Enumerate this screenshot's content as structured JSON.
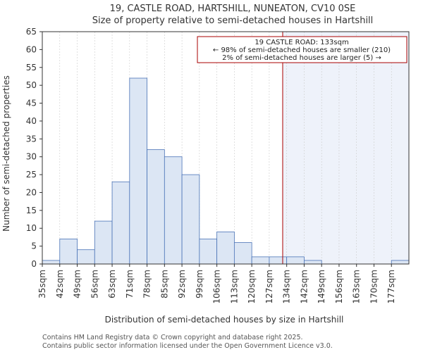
{
  "chart_data": {
    "type": "bar",
    "title_line1": "19, CASTLE ROAD, HARTSHILL, NUNEATON, CV10 0SE",
    "title_line2": "Size of property relative to semi-detached houses in Hartshill",
    "xlabel": "Distribution of semi-detached houses by size in Hartshill",
    "ylabel": "Number of semi-detached properties",
    "categories": [
      "35sqm",
      "42sqm",
      "49sqm",
      "56sqm",
      "63sqm",
      "71sqm",
      "78sqm",
      "85sqm",
      "92sqm",
      "99sqm",
      "106sqm",
      "113sqm",
      "120sqm",
      "127sqm",
      "134sqm",
      "142sqm",
      "149sqm",
      "156sqm",
      "163sqm",
      "170sqm",
      "177sqm"
    ],
    "values": [
      1,
      7,
      4,
      12,
      23,
      52,
      32,
      30,
      25,
      7,
      9,
      6,
      2,
      2,
      2,
      1,
      0,
      0,
      0,
      0,
      1
    ],
    "ylim": [
      0,
      65
    ],
    "yticks": [
      0,
      5,
      10,
      15,
      20,
      25,
      30,
      35,
      40,
      45,
      50,
      55,
      60,
      65
    ],
    "marker_bin_position": 13.77,
    "annotation": {
      "line1": "19 CASTLE ROAD: 133sqm",
      "line2": "← 98% of semi-detached houses are smaller (210)",
      "line3": "2% of semi-detached houses are larger (5) →"
    },
    "footer_line1": "Contains HM Land Registry data © Crown copyright and database right 2025.",
    "footer_line2": "Contains public sector information licensed under the Open Government Licence v3.0."
  },
  "colors": {
    "bar_fill": "#dce6f4",
    "bar_stroke": "#4a73b7",
    "marker_line": "#aa0000",
    "highlight_fill": "#eef2fa",
    "annotation_border": "#aa0000",
    "grid": "#cccccc",
    "text": "#333333"
  }
}
